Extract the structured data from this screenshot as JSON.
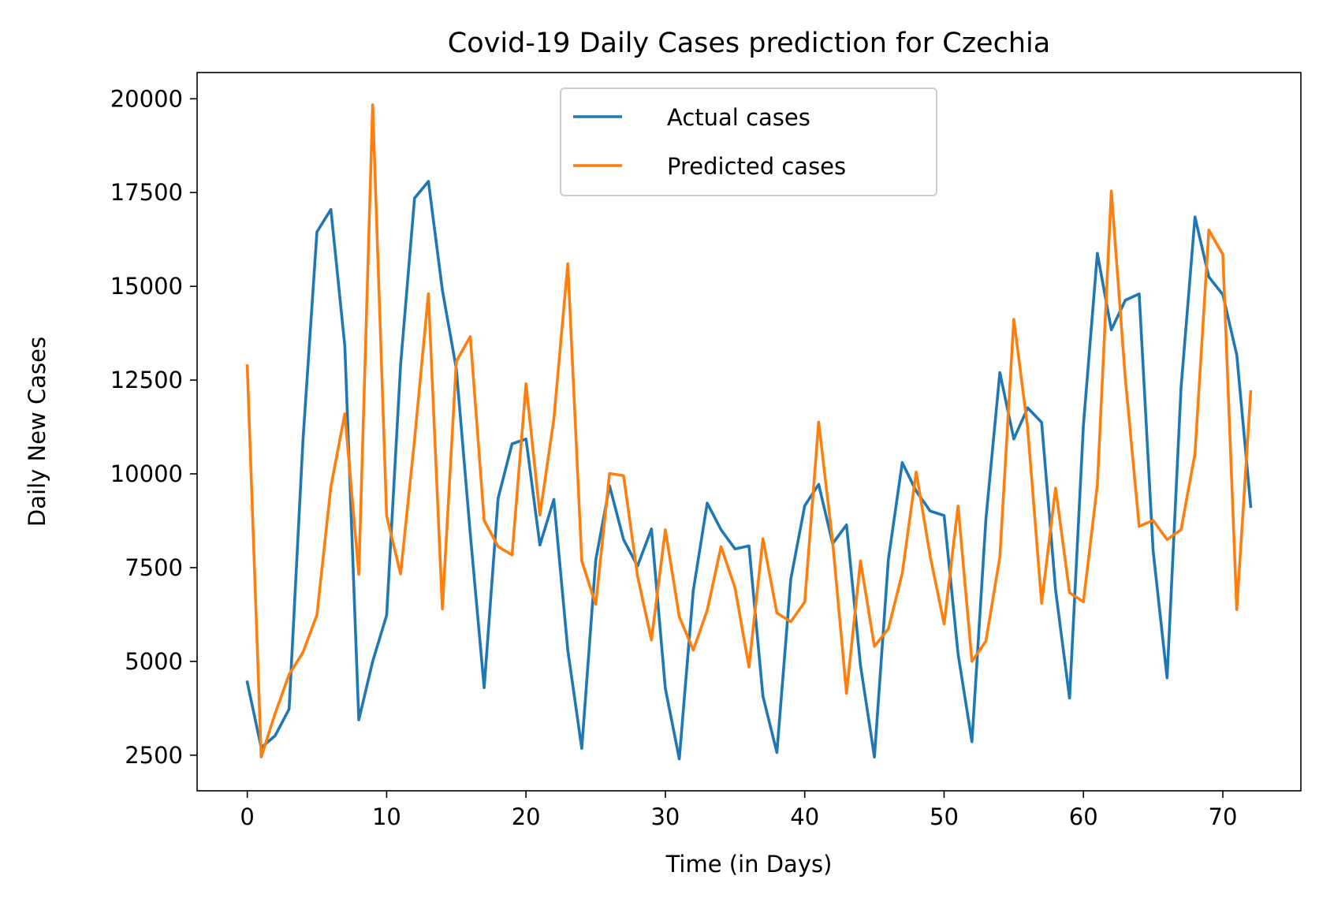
{
  "chart_data": {
    "type": "line",
    "title": "Covid-19 Daily Cases prediction for Czechia",
    "xlabel": "Time (in Days)",
    "ylabel": "Daily New Cases",
    "xlim": [
      -3.6,
      75.6
    ],
    "ylim": [
      1550,
      20700
    ],
    "xticks": [
      0,
      10,
      20,
      30,
      40,
      50,
      60,
      70
    ],
    "yticks": [
      2500,
      5000,
      7500,
      10000,
      12500,
      15000,
      17500,
      20000
    ],
    "grid": false,
    "legend_position": "upper center",
    "x": [
      0,
      1,
      2,
      3,
      4,
      5,
      6,
      7,
      8,
      9,
      10,
      11,
      12,
      13,
      14,
      15,
      16,
      17,
      18,
      19,
      20,
      21,
      22,
      23,
      24,
      25,
      26,
      27,
      28,
      29,
      30,
      31,
      32,
      33,
      34,
      35,
      36,
      37,
      38,
      39,
      40,
      41,
      42,
      43,
      44,
      45,
      46,
      47,
      48,
      49,
      50,
      51,
      52,
      53,
      54,
      55,
      56,
      57,
      58,
      59,
      60,
      61,
      62,
      63,
      64,
      65,
      66,
      67,
      68,
      69,
      70,
      71,
      72
    ],
    "series": [
      {
        "name": "Actual cases",
        "color": "#1f77b4",
        "values": [
          4450,
          2700,
          3020,
          3730,
          10900,
          16450,
          17050,
          13400,
          3440,
          5000,
          6230,
          12900,
          17350,
          17800,
          14900,
          12800,
          8400,
          4300,
          9350,
          10800,
          10930,
          8100,
          9320,
          5300,
          2680,
          7700,
          9680,
          8250,
          7540,
          8530,
          4280,
          2400,
          6880,
          9220,
          8510,
          8000,
          8080,
          4070,
          2570,
          7190,
          9150,
          9720,
          8140,
          8640,
          4900,
          2450,
          7720,
          10300,
          9540,
          9010,
          8890,
          5200,
          2860,
          8790,
          12700,
          10930,
          11760,
          11370,
          6900,
          4020,
          11300,
          15880,
          13840,
          14630,
          14800,
          7950,
          4560,
          12290,
          16850,
          15250,
          14780,
          13170,
          9130
        ]
      },
      {
        "name": "Predicted cases",
        "color": "#ff7f0e",
        "values": [
          12880,
          2450,
          3610,
          4650,
          5240,
          6240,
          9660,
          11600,
          7320,
          19840,
          8880,
          7330,
          10910,
          14800,
          6400,
          13000,
          13660,
          8760,
          8060,
          7840,
          12400,
          8900,
          11460,
          15600,
          7680,
          6520,
          10010,
          9950,
          7280,
          5570,
          8510,
          6190,
          5300,
          6360,
          8060,
          6960,
          4850,
          8270,
          6290,
          6060,
          6580,
          11380,
          8190,
          4150,
          7680,
          5400,
          5870,
          7350,
          10050,
          7810,
          6000,
          9140,
          5000,
          5540,
          7780,
          14120,
          11220,
          6550,
          9620,
          6830,
          6590,
          9710,
          17540,
          12550,
          8600,
          8760,
          8250,
          8510,
          10540,
          16500,
          15850,
          6380,
          12190
        ]
      }
    ]
  }
}
